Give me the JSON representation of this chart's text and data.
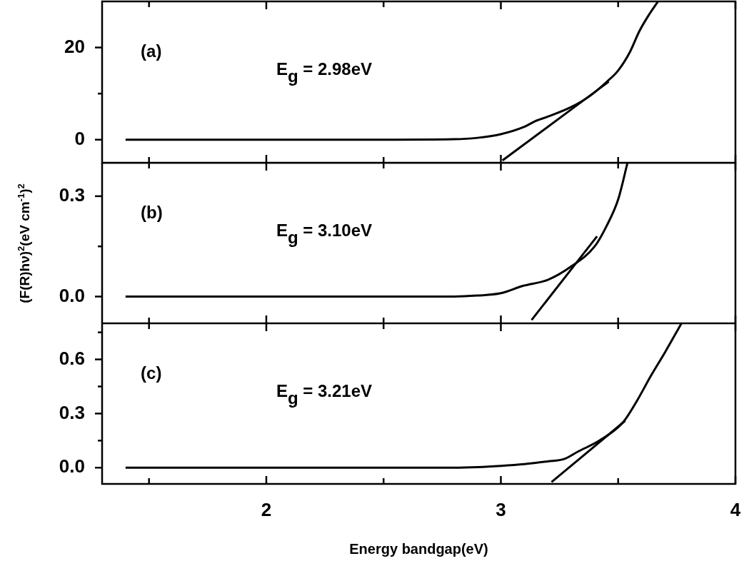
{
  "chart_data": [
    {
      "type": "line",
      "marker": "none",
      "tick_labels": "y",
      "annotations": [
        "(a)",
        "E$_{g}$ = 2.98eV"
      ],
      "xlim": [
        1.3,
        4
      ],
      "xticks": [
        {
          "value": 1.5,
          "label": null
        },
        2,
        {
          "value": 2.5,
          "label": null
        },
        3,
        {
          "value": 3.5,
          "label": null
        },
        4
      ],
      "ylim": [
        -5,
        30
      ],
      "yticks": [
        0,
        {
          "value": 10,
          "label": null
        },
        20
      ],
      "series": [
        {
          "color": "#000000",
          "x": [
            1.4,
            2.0,
            2.5,
            2.8,
            2.9,
            3.0,
            3.1,
            3.146,
            3.2,
            3.3,
            3.38,
            3.45,
            3.5,
            3.55,
            3.59,
            3.63,
            3.67
          ],
          "values": [
            0,
            0,
            0,
            0.1,
            0.4,
            1.2,
            2.8,
            4,
            5,
            7.1,
            9.5,
            12.5,
            15,
            19,
            23.5,
            27,
            30
          ]
        },
        {
          "color": "#000000",
          "x": [
            3.007,
            3.46
          ],
          "values": [
            -4.5,
            12.6
          ]
        }
      ]
    },
    {
      "type": "line",
      "marker": "none",
      "tick_labels": "y",
      "ylabel": "(F(R)hν)$^{2}$(eV cm$^{-1}$)$^{2}$",
      "annotations": [
        "(b)",
        "E$_{g}$ = 3.10eV"
      ],
      "xlim": [
        1.3,
        4
      ],
      "xticks": [
        {
          "value": 1.5,
          "label": null
        },
        2,
        {
          "value": 2.5,
          "label": null
        },
        3,
        {
          "value": 3.5,
          "label": null
        },
        4
      ],
      "ylim": [
        -0.08,
        0.4
      ],
      "yticks": [
        {
          "value": 0,
          "label": "0.0"
        },
        {
          "value": 0.15,
          "label": null
        },
        0.3
      ],
      "series": [
        {
          "color": "#000000",
          "x": [
            1.4,
            2.0,
            2.5,
            2.8,
            2.9,
            3.0,
            3.094,
            3.2,
            3.3,
            3.4,
            3.45,
            3.5,
            3.54
          ],
          "values": [
            0,
            0,
            0,
            0,
            0.003,
            0.01,
            0.032,
            0.05,
            0.09,
            0.15,
            0.21,
            0.29,
            0.4
          ]
        },
        {
          "color": "#000000",
          "x": [
            3.131,
            3.41
          ],
          "values": [
            -0.07,
            0.18
          ]
        }
      ]
    },
    {
      "type": "line",
      "marker": "none",
      "xlabel": "Energy bandgap(eV)",
      "annotations": [
        "(c)",
        "E$_{g}$ = 3.21eV"
      ],
      "xlim": [
        1.3,
        4
      ],
      "xticks": [
        {
          "value": 1.5,
          "label": null
        },
        2,
        {
          "value": 2.5,
          "label": null
        },
        3,
        {
          "value": 3.5,
          "label": null
        },
        4
      ],
      "ylim": [
        -0.09,
        0.8
      ],
      "yticks": [
        {
          "value": 0,
          "label": "0.0"
        },
        {
          "value": 0.15,
          "label": null
        },
        0.3,
        {
          "value": 0.45,
          "label": null
        },
        0.6,
        {
          "value": 0.75,
          "label": null
        }
      ],
      "series": [
        {
          "color": "#000000",
          "x": [
            1.4,
            2.0,
            2.5,
            2.8,
            2.9,
            3.0,
            3.1,
            3.2,
            3.27,
            3.33,
            3.42,
            3.52,
            3.58,
            3.64,
            3.7,
            3.77
          ],
          "values": [
            0,
            0,
            0,
            0,
            0.003,
            0.01,
            0.02,
            0.035,
            0.048,
            0.09,
            0.15,
            0.25,
            0.37,
            0.51,
            0.64,
            0.8
          ]
        },
        {
          "color": "#000000",
          "x": [
            3.216,
            3.53
          ],
          "values": [
            -0.08,
            0.26
          ]
        }
      ]
    }
  ]
}
